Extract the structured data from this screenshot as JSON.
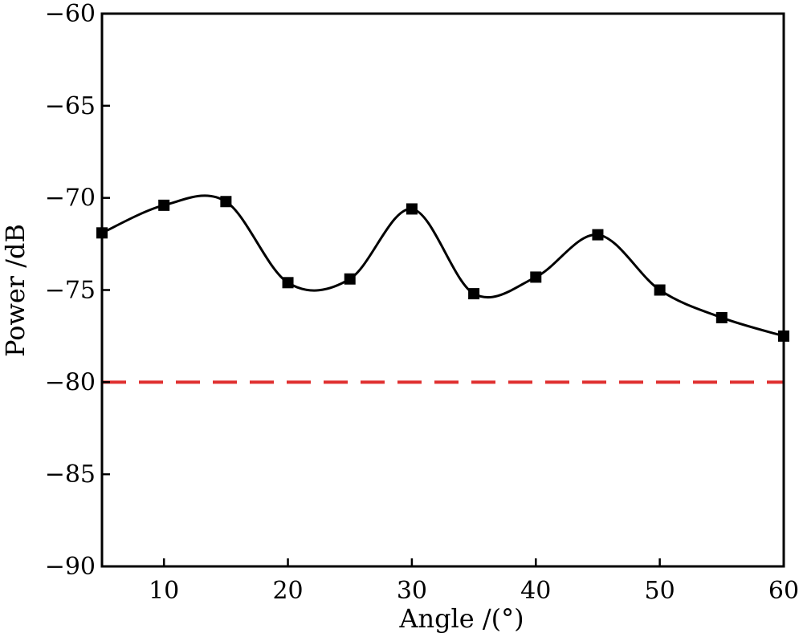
{
  "chart_data": {
    "type": "line",
    "xlabel": "Angle /(°)",
    "ylabel": "Power /dB",
    "xlim": [
      5,
      60
    ],
    "ylim": [
      -90,
      -60
    ],
    "x_ticks": [
      10,
      20,
      30,
      40,
      50,
      60
    ],
    "y_ticks": [
      -60,
      -65,
      -70,
      -75,
      -80,
      -85,
      -90
    ],
    "y_tick_labels": [
      "−60",
      "−65",
      "−70",
      "−75",
      "−80",
      "−85",
      "−90"
    ],
    "grid": false,
    "series": [
      {
        "marker": "square",
        "line": "smooth",
        "color": "#000000",
        "x": [
          5,
          10,
          15,
          20,
          25,
          30,
          35,
          40,
          45,
          50,
          55,
          60
        ],
        "y": [
          -71.9,
          -70.4,
          -70.2,
          -74.6,
          -74.4,
          -70.6,
          -75.2,
          -74.3,
          -72.0,
          -75.0,
          -76.5,
          -77.5
        ]
      }
    ],
    "reference_lines": [
      {
        "y": -80,
        "style": "dashed",
        "color": "#e03030"
      }
    ]
  }
}
